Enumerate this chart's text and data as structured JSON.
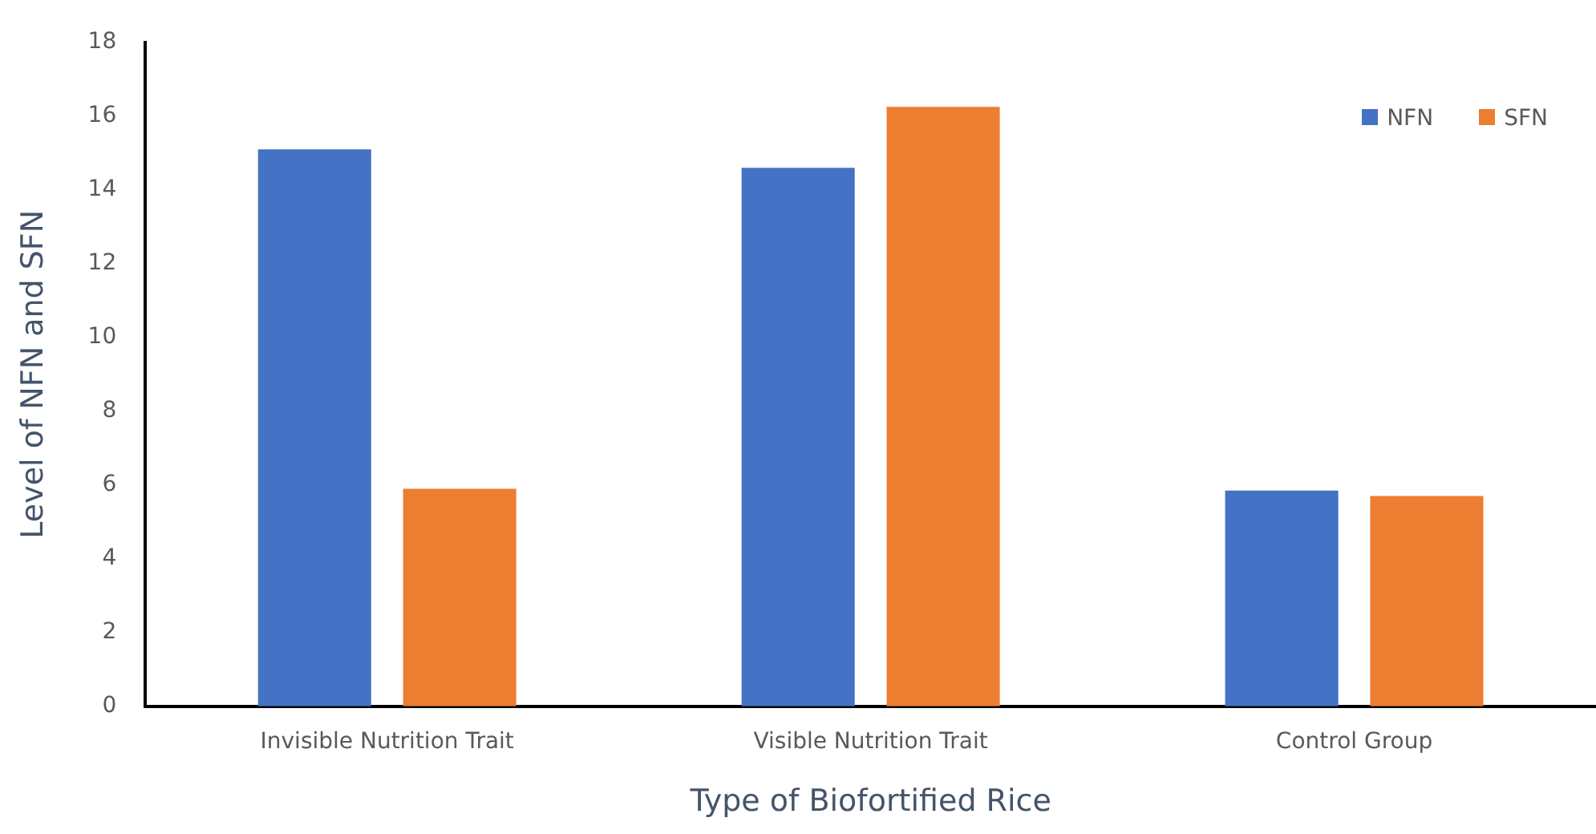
{
  "chart_data": {
    "type": "bar",
    "xlabel": "Type of Biofortified Rice",
    "ylabel": "Level of NFN and SFN",
    "categories": [
      "Invisible Nutrition Trait",
      "Visible Nutrition Trait",
      "Control Group"
    ],
    "series": [
      {
        "name": "NFN",
        "color": "#4472c4",
        "values": [
          15.1,
          14.6,
          5.85
        ]
      },
      {
        "name": "SFN",
        "color": "#ed7d31",
        "values": [
          5.9,
          16.25,
          5.7
        ]
      }
    ],
    "ylim": [
      0,
      18
    ],
    "yticks": [
      0,
      2,
      4,
      6,
      8,
      10,
      12,
      14,
      16,
      18
    ],
    "grid": false,
    "legend": "top right"
  }
}
